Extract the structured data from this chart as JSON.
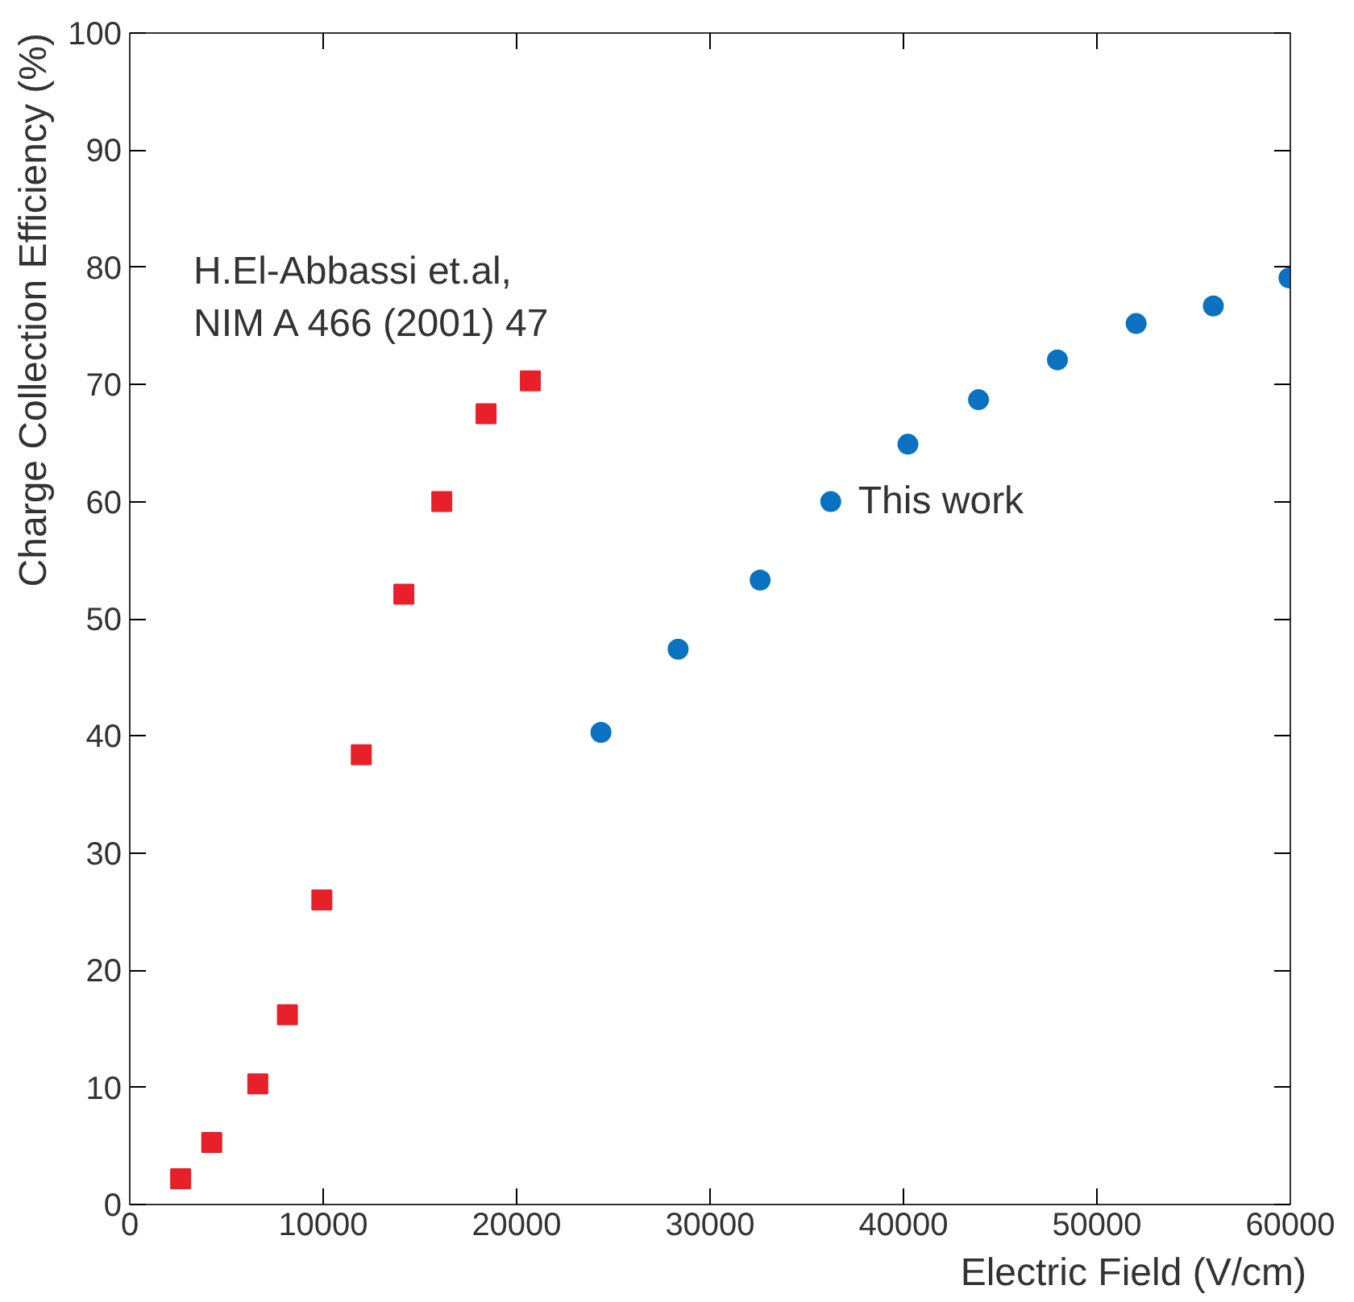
{
  "chart_data": {
    "type": "scatter",
    "xlabel": "Electric Field (V/cm)",
    "ylabel": "Charge Collection Efficiency (%)",
    "xlim": [
      0,
      60000
    ],
    "ylim": [
      0,
      100
    ],
    "xticks": [
      0,
      10000,
      20000,
      30000,
      40000,
      50000,
      60000
    ],
    "yticks": [
      0,
      10,
      20,
      30,
      40,
      50,
      60,
      70,
      80,
      90,
      100
    ],
    "grid": false,
    "series": [
      {
        "name": "H.El-Abbassi et.al,\nNIM A 466 (2001) 47",
        "color": "#e8202a",
        "marker": "square",
        "x": [
          2630,
          4240,
          6620,
          8150,
          9930,
          11970,
          14170,
          16130,
          18420,
          20710
        ],
        "values": [
          2.2,
          5.3,
          10.3,
          16.2,
          26,
          38.4,
          52.1,
          60,
          67.5,
          70.3
        ]
      },
      {
        "name": "This work",
        "color": "#0a72c0",
        "marker": "circle",
        "x": [
          24360,
          28350,
          32590,
          36240,
          40230,
          43880,
          47960,
          52030,
          56020,
          59930
        ],
        "values": [
          40.3,
          47.4,
          53.3,
          60,
          64.9,
          68.7,
          72.1,
          75.2,
          76.7,
          79.1
        ]
      }
    ]
  }
}
